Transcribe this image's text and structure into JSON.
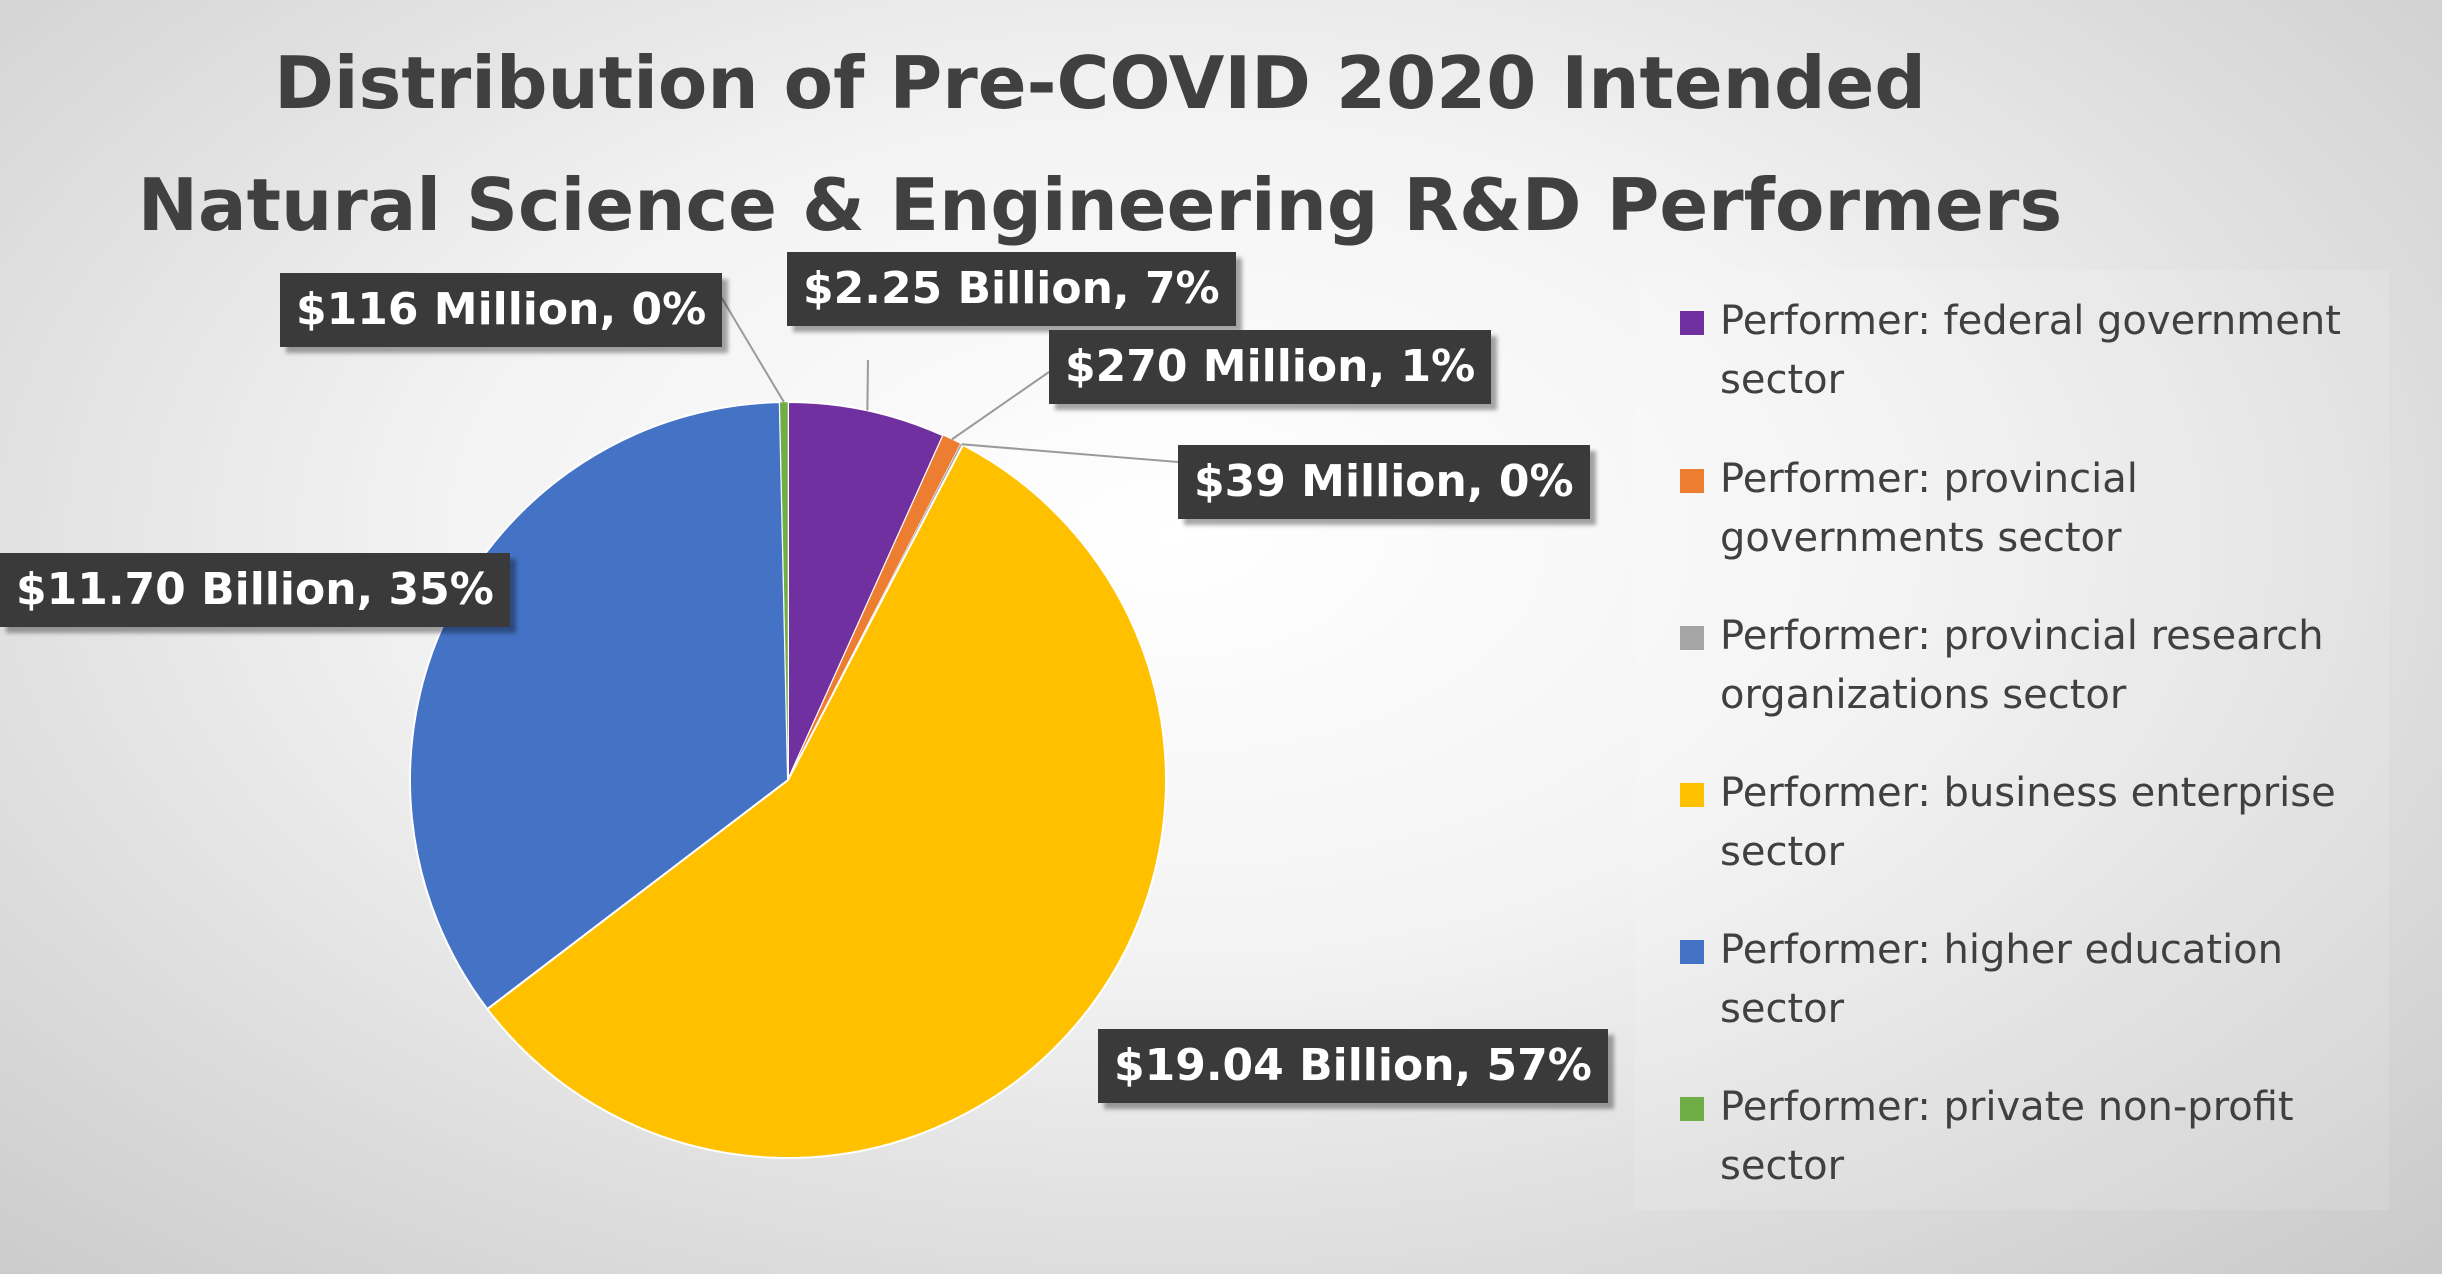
{
  "chart_data": {
    "type": "pie",
    "title": [
      "Distribution of Pre-COVID 2020 Intended",
      "Natural Science & Engineering R&D Performers"
    ],
    "legend_position": "right",
    "slices": [
      {
        "name": "Performer: federal government sector",
        "value": 2250,
        "percent": 7,
        "label": "$2.25 Billion, 7%",
        "color": "#7030a0"
      },
      {
        "name": "Performer: provincial governments sector",
        "value": 270,
        "percent": 1,
        "label": "$270 Million, 1%",
        "color": "#ed7d31"
      },
      {
        "name": "Performer: provincial research organizations sector",
        "value": 39,
        "percent": 0,
        "label": "$39 Million, 0%",
        "color": "#a5a5a5"
      },
      {
        "name": "Performer: business enterprise sector",
        "value": 19040,
        "percent": 57,
        "label": "$19.04 Billion, 57%",
        "color": "#ffc000"
      },
      {
        "name": "Performer: higher education sector",
        "value": 11700,
        "percent": 35,
        "label": "$11.70 Billion, 35%",
        "color": "#4472c4"
      },
      {
        "name": "Performer: private non-profit sector",
        "value": 116,
        "percent": 0,
        "label": "$116 Million, 0%",
        "color": "#70ad47"
      }
    ]
  }
}
